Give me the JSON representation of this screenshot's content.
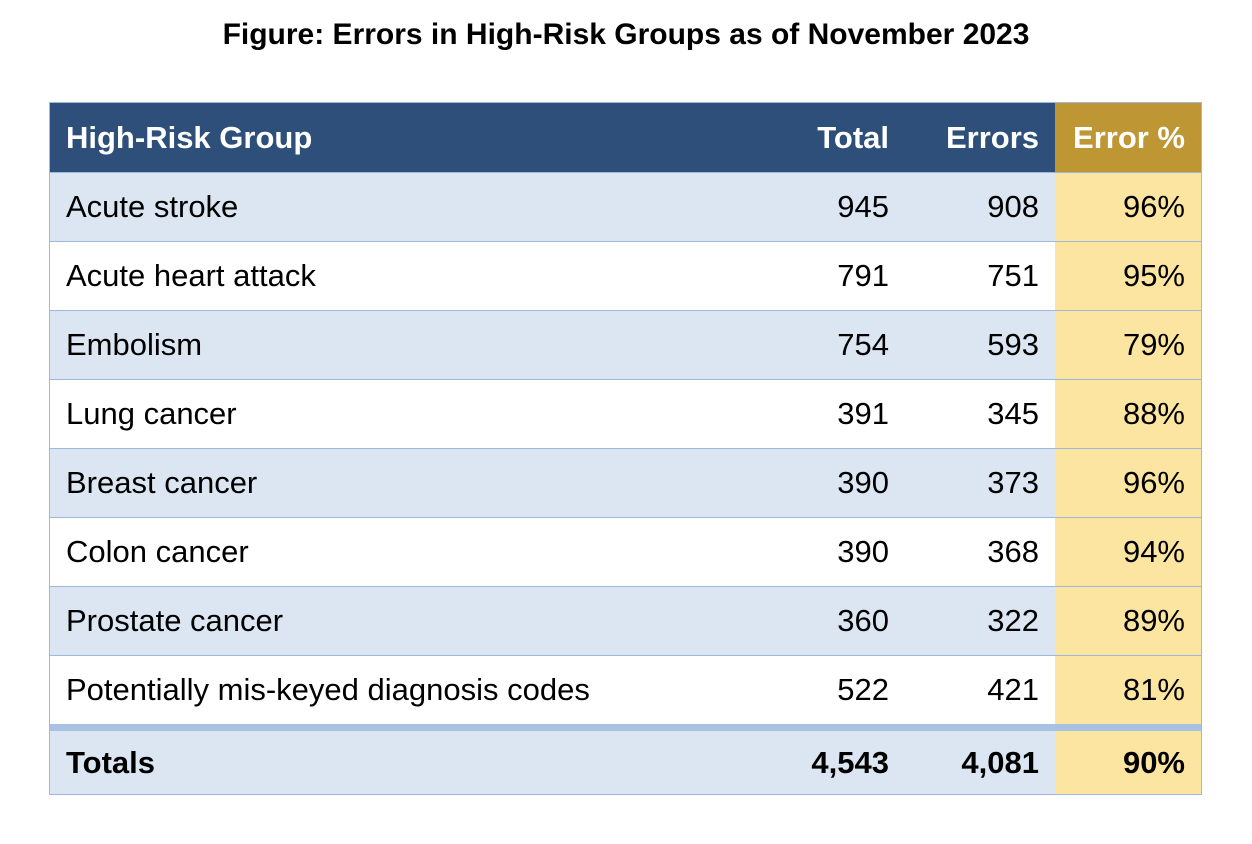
{
  "title": "Figure: Errors in High-Risk Groups as of November 2023",
  "table": {
    "headers": {
      "group": "High-Risk Group",
      "total": "Total",
      "errors": "Errors",
      "pct": "Error %"
    },
    "rows": [
      {
        "group": "Acute stroke",
        "total": "945",
        "errors": "908",
        "pct": "96%"
      },
      {
        "group": "Acute heart attack",
        "total": "791",
        "errors": "751",
        "pct": "95%"
      },
      {
        "group": "Embolism",
        "total": "754",
        "errors": "593",
        "pct": "79%"
      },
      {
        "group": "Lung cancer",
        "total": "391",
        "errors": "345",
        "pct": "88%"
      },
      {
        "group": "Breast cancer",
        "total": "390",
        "errors": "373",
        "pct": "96%"
      },
      {
        "group": "Colon cancer",
        "total": "390",
        "errors": "368",
        "pct": "94%"
      },
      {
        "group": "Prostate cancer",
        "total": "360",
        "errors": "322",
        "pct": "89%"
      },
      {
        "group": "Potentially mis-keyed diagnosis codes",
        "total": "522",
        "errors": "421",
        "pct": "81%"
      }
    ],
    "totals": {
      "label": "Totals",
      "total": "4,543",
      "errors": "4,081",
      "pct": "90%"
    }
  },
  "colors": {
    "header_bg": "#2d4f79",
    "header_pct_bg": "#bf9634",
    "row_alt_bg": "#dce6f2",
    "pct_column_bg": "#fbe5a1",
    "border": "#9cb9dd"
  }
}
